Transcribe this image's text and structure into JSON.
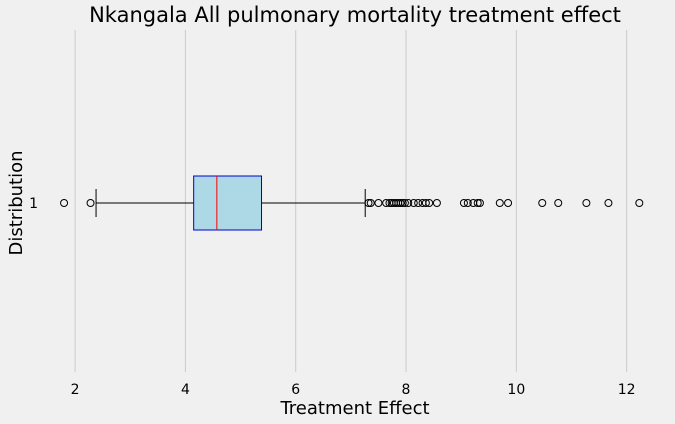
{
  "chart_data": {
    "type": "boxplot",
    "orientation": "horizontal",
    "title": "Nkangala All pulmonary mortality treatment effect",
    "xlabel": "Treatment Effect",
    "ylabel": "Distribution",
    "categories": [
      "1"
    ],
    "xlim": [
      1.4,
      12.75
    ],
    "xticks": [
      2,
      4,
      6,
      8,
      10,
      12
    ],
    "grid": "vertical",
    "box": {
      "whisker_low": 2.38,
      "q1": 4.15,
      "median": 4.57,
      "q3": 5.38,
      "whisker_high": 7.26
    },
    "outliers": [
      1.8,
      2.28,
      7.32,
      7.36,
      7.5,
      7.64,
      7.7,
      7.74,
      7.78,
      7.82,
      7.86,
      7.9,
      7.94,
      7.98,
      8.04,
      8.14,
      8.22,
      8.3,
      8.36,
      8.42,
      8.56,
      9.05,
      9.12,
      9.22,
      9.3,
      9.34,
      9.7,
      9.85,
      10.47,
      10.76,
      11.27,
      11.67,
      12.23
    ],
    "colors": {
      "box_fill": "#add8e6",
      "box_edge": "#0000cd",
      "median": "#ff0000",
      "whisker": "#000000",
      "grid": "#cbcbcb",
      "background": "#f0f0f0"
    }
  }
}
